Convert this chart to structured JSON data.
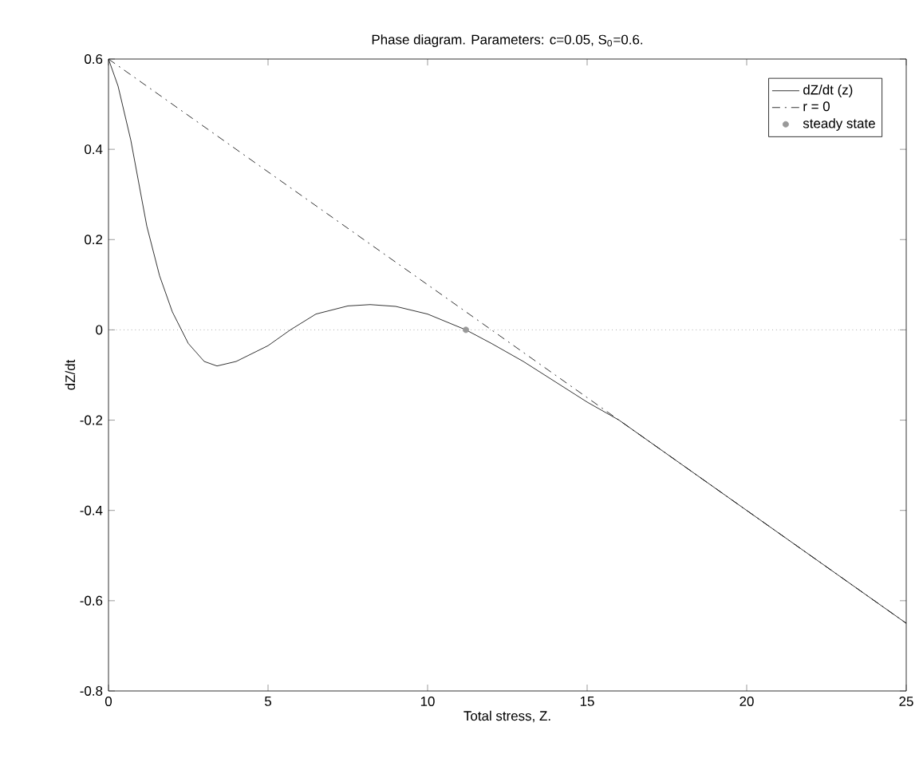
{
  "chart_data": {
    "type": "line",
    "title": "Phase diagram. Parameters: c=0.05, S$_{0}$=0.6.",
    "xlabel": "Total stress, Z.",
    "ylabel": "dZ/dt",
    "xlim": [
      0,
      25
    ],
    "ylim": [
      -0.8,
      0.6
    ],
    "xticks": [
      0,
      5,
      10,
      15,
      20,
      25
    ],
    "yticks": [
      -0.8,
      -0.6,
      -0.4,
      -0.2,
      0,
      0.2,
      0.4,
      0.6
    ],
    "legend": "top right",
    "grid": false,
    "series": [
      {
        "name": "dZ/dt (z)",
        "color": "#000000",
        "line_style": "solid",
        "x": [
          0,
          0.3,
          0.7,
          1.2,
          1.6,
          2,
          2.5,
          3,
          3.4,
          4,
          5,
          5.7,
          6.5,
          7.5,
          8.2,
          9,
          10,
          11.2,
          12,
          13,
          14,
          15,
          16,
          18,
          20,
          22,
          25
        ],
        "values": [
          0.6,
          0.54,
          0.42,
          0.23,
          0.12,
          0.04,
          -0.03,
          -0.07,
          -0.08,
          -0.07,
          -0.035,
          0,
          0.035,
          0.053,
          0.056,
          0.052,
          0.035,
          0,
          -0.03,
          -0.07,
          -0.115,
          -0.16,
          -0.2,
          -0.3,
          -0.4,
          -0.5,
          -0.65
        ]
      },
      {
        "name": "r = 0",
        "color": "#000000",
        "line_style": "dashdot",
        "x": [
          0,
          25
        ],
        "values": [
          0.6,
          -0.65
        ]
      },
      {
        "name": "steady state",
        "type": "scatter",
        "color": "#999999",
        "marker": "circle",
        "x": [
          11.2
        ],
        "values": [
          0
        ]
      }
    ],
    "ref_lines": [
      {
        "axis": "y",
        "value": 0,
        "color": "#808080",
        "line_style": "dotted"
      }
    ]
  }
}
